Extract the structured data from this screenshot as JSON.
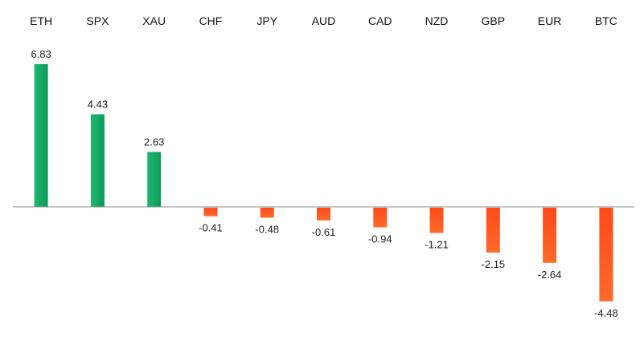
{
  "chart_data": {
    "type": "bar",
    "categories": [
      "ETH",
      "SPX",
      "XAU",
      "CHF",
      "JPY",
      "AUD",
      "CAD",
      "NZD",
      "GBP",
      "EUR",
      "BTC"
    ],
    "values": [
      6.83,
      4.43,
      2.63,
      -0.41,
      -0.48,
      -0.61,
      -0.94,
      -1.21,
      -2.15,
      -2.64,
      -4.48
    ],
    "value_labels": [
      "6.83",
      "4.43",
      "2.63",
      "-0.41",
      "-0.48",
      "-0.61",
      "-0.94",
      "-1.21",
      "-2.15",
      "-2.64",
      "-4.48"
    ],
    "title": "",
    "xlabel": "",
    "ylabel": "",
    "category_label_position": "top",
    "grid": false,
    "legend": "none",
    "colors": {
      "positive_top": "#1fb870",
      "positive_bottom": "#0e9a58",
      "negative_top": "#ff4a1a",
      "negative_bottom": "#ff6a2a",
      "axis": "#8c8c8c"
    }
  }
}
